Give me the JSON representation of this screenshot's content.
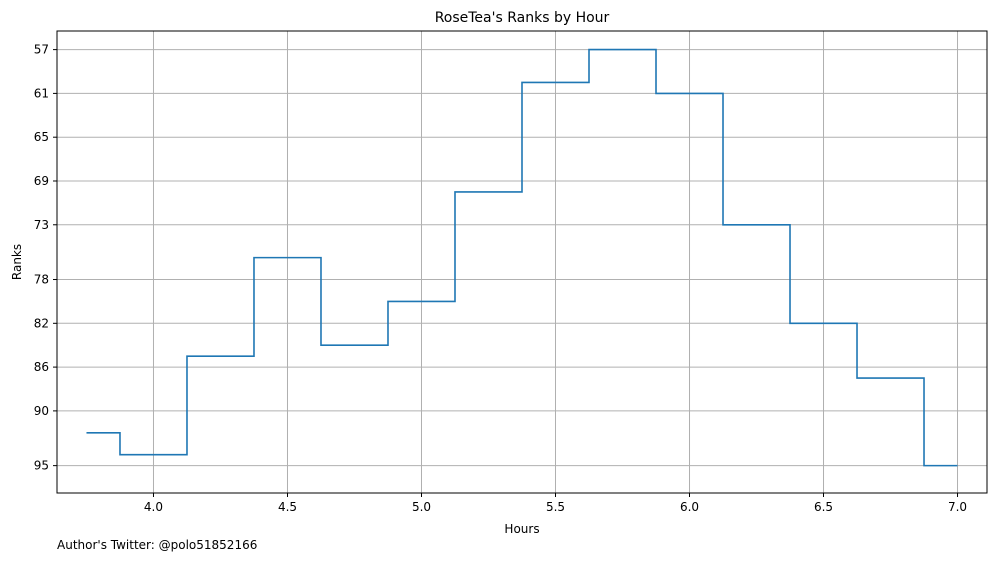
{
  "chart_data": {
    "type": "line",
    "title": "RoseTea's Ranks by Hour",
    "xlabel": "Hours",
    "ylabel": "Ranks",
    "x": [
      3.75,
      3.875,
      4.125,
      4.375,
      4.625,
      4.875,
      5.125,
      5.375,
      5.625,
      5.875,
      6.125,
      6.375,
      6.625,
      6.875,
      7.0
    ],
    "y": [
      92,
      94,
      85,
      76,
      84,
      80,
      70,
      60,
      57,
      61,
      73,
      82,
      87,
      95,
      95
    ],
    "xlim": [
      3.64,
      7.11
    ],
    "ylim": [
      97.5,
      55.3
    ],
    "x_ticks": [
      4.0,
      4.5,
      5.0,
      5.5,
      6.0,
      6.5,
      7.0
    ],
    "x_tick_labels": [
      "4.0",
      "4.5",
      "5.0",
      "5.5",
      "6.0",
      "6.5",
      "7.0"
    ],
    "y_ticks": [
      57,
      61,
      65,
      69,
      73,
      78,
      82,
      86,
      90,
      95
    ],
    "y_tick_labels": [
      "57",
      "61",
      "65",
      "69",
      "73",
      "78",
      "82",
      "86",
      "90",
      "95"
    ],
    "y_inverted": true,
    "grid": true,
    "step": "post",
    "line_color": "#1f77b4"
  },
  "footer": {
    "credit": "Author's Twitter: @polo51852166"
  }
}
